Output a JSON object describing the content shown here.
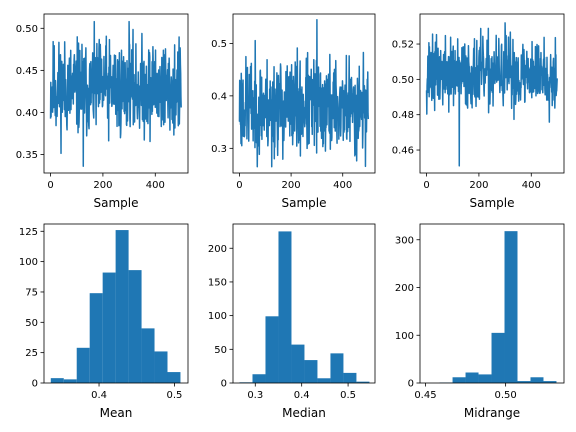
{
  "figure": {
    "color": "#1f77b4"
  },
  "chart_data": [
    {
      "type": "line",
      "xlabel": "Sample",
      "ylabel": "",
      "xlim": [
        -25,
        525
      ],
      "ylim": [
        0.328,
        0.517
      ],
      "xticks": [
        0,
        200,
        400
      ],
      "xticklabels": [
        "0",
        "200",
        "400"
      ],
      "yticks": [
        0.35,
        0.4,
        0.45,
        0.5
      ],
      "yticklabels": [
        "0.35",
        "0.40",
        "0.45",
        "0.50"
      ],
      "n": 500,
      "mean": 0.428,
      "spread": 0.028,
      "min": 0.336,
      "max": 0.508,
      "seed": 11
    },
    {
      "type": "line",
      "xlabel": "Sample",
      "ylabel": "",
      "xlim": [
        -25,
        525
      ],
      "ylim": [
        0.253,
        0.556
      ],
      "xticks": [
        0,
        200,
        400
      ],
      "xticklabels": [
        "0",
        "200",
        "400"
      ],
      "yticks": [
        0.3,
        0.4,
        0.5
      ],
      "yticklabels": [
        "0.3",
        "0.4",
        "0.5"
      ],
      "n": 500,
      "mean": 0.38,
      "spread": 0.045,
      "min": 0.265,
      "max": 0.545,
      "seed": 23
    },
    {
      "type": "line",
      "xlabel": "Sample",
      "ylabel": "",
      "xlim": [
        -25,
        525
      ],
      "ylim": [
        0.447,
        0.537
      ],
      "xticks": [
        0,
        200,
        400
      ],
      "xticklabels": [
        "0",
        "200",
        "400"
      ],
      "yticks": [
        0.46,
        0.48,
        0.5,
        0.52
      ],
      "yticklabels": [
        "0.46",
        "0.48",
        "0.50",
        "0.52"
      ],
      "n": 500,
      "mean": 0.503,
      "spread": 0.01,
      "min": 0.451,
      "max": 0.532,
      "seed": 37
    },
    {
      "type": "bar",
      "xlabel": "Mean",
      "ylabel": "",
      "xlim": [
        0.327,
        0.518
      ],
      "ylim": [
        0,
        131
      ],
      "xticks": [
        0.4,
        0.5
      ],
      "xticklabels": [
        "0.4",
        "0.5"
      ],
      "yticks": [
        0,
        25,
        50,
        75,
        100,
        125
      ],
      "yticklabels": [
        "0",
        "25",
        "50",
        "75",
        "100",
        "125"
      ],
      "bin_edges": [
        0.336,
        0.3532,
        0.3704,
        0.3876,
        0.4048,
        0.422,
        0.4392,
        0.4564,
        0.4736,
        0.4908,
        0.508
      ],
      "counts": [
        4,
        3,
        29,
        74,
        91,
        126,
        93,
        45,
        26,
        9
      ]
    },
    {
      "type": "bar",
      "xlabel": "Median",
      "ylabel": "",
      "xlim": [
        0.252,
        0.558
      ],
      "ylim": [
        0,
        236
      ],
      "xticks": [
        0.3,
        0.4,
        0.5
      ],
      "xticklabels": [
        "0.3",
        "0.4",
        "0.5"
      ],
      "yticks": [
        0,
        50,
        100,
        150,
        200
      ],
      "yticklabels": [
        "0",
        "50",
        "100",
        "150",
        "200"
      ],
      "bin_edges": [
        0.266,
        0.294,
        0.322,
        0.35,
        0.378,
        0.406,
        0.434,
        0.462,
        0.49,
        0.518,
        0.546
      ],
      "counts": [
        1,
        13,
        99,
        225,
        57,
        34,
        7,
        44,
        15,
        2
      ]
    },
    {
      "type": "bar",
      "xlabel": "Midrange",
      "ylabel": "",
      "xlim": [
        0.4466,
        0.5364
      ],
      "ylim": [
        0,
        333
      ],
      "xticks": [
        0.45,
        0.5
      ],
      "xticklabels": [
        "0.45",
        "0.50"
      ],
      "yticks": [
        0,
        100,
        200,
        300
      ],
      "yticklabels": [
        "0",
        "100",
        "200",
        "300"
      ],
      "bin_edges": [
        0.4507,
        0.4588,
        0.4669,
        0.475,
        0.4831,
        0.4912,
        0.4993,
        0.5074,
        0.5155,
        0.5236,
        0.5317
      ],
      "counts": [
        0,
        1,
        12,
        22,
        18,
        105,
        318,
        4,
        12,
        4
      ]
    }
  ]
}
